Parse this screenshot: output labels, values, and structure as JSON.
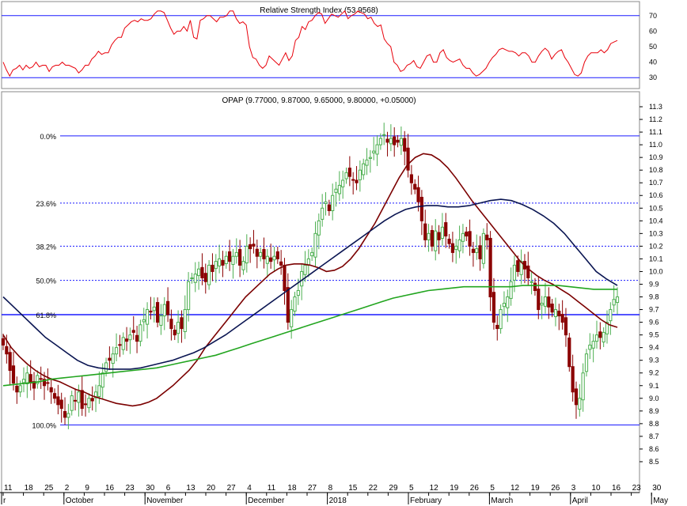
{
  "chart_data": [
    {
      "type": "line",
      "title": "Relative Strength Index (53.9568)",
      "ylim": [
        25,
        75
      ],
      "yticks": [
        30,
        40,
        50,
        60,
        70
      ],
      "reference_lines": [
        70,
        30
      ],
      "series": [
        {
          "name": "",
          "color": "#e8000a",
          "values": [
            40,
            35,
            31,
            35,
            36,
            38,
            35,
            38,
            36,
            37,
            40,
            37,
            38,
            38,
            34,
            37,
            38,
            38,
            40,
            38,
            38,
            37,
            36,
            33,
            35,
            38,
            38,
            42,
            44,
            47,
            45,
            46,
            46,
            51,
            54,
            56,
            56,
            62,
            64,
            66,
            67,
            66,
            68,
            67,
            67,
            68,
            71,
            73,
            73,
            72,
            67,
            62,
            58,
            60,
            60,
            63,
            60,
            67,
            56,
            55,
            67,
            68,
            70,
            70,
            68,
            66,
            69,
            69,
            70,
            73,
            73,
            68,
            65,
            66,
            64,
            50,
            43,
            42,
            38,
            36,
            38,
            44,
            42,
            40,
            38,
            42,
            46,
            41,
            44,
            54,
            56,
            63,
            61,
            66,
            67,
            70,
            72,
            71,
            65,
            68,
            71,
            70,
            69,
            71,
            73,
            68,
            70,
            71,
            73,
            72,
            71,
            68,
            69,
            65,
            63,
            64,
            55,
            52,
            50,
            40,
            38,
            34,
            35,
            38,
            39,
            41,
            37,
            36,
            40,
            44,
            45,
            40,
            40,
            46,
            48,
            43,
            41,
            40,
            41,
            42,
            38,
            36,
            36,
            33,
            31,
            32,
            34,
            36,
            40,
            43,
            45,
            48,
            49,
            48,
            47,
            47,
            46,
            44,
            46,
            46,
            44,
            40,
            40,
            44,
            47,
            49,
            47,
            42,
            45,
            47,
            48,
            43,
            40,
            36,
            32,
            31,
            33,
            40,
            44,
            46,
            46,
            46,
            48,
            46,
            48,
            52,
            53,
            54
          ]
        }
      ]
    },
    {
      "type": "candlestick",
      "title": "OPAP (9.77000, 9.87000, 9.65000, 9.80000, +0.05000)",
      "ylim": [
        8.4,
        11.3
      ],
      "yticks": [
        8.5,
        8.6,
        8.7,
        8.8,
        8.9,
        9.0,
        9.1,
        9.2,
        9.3,
        9.4,
        9.5,
        9.6,
        9.7,
        9.8,
        9.9,
        10.0,
        10.1,
        10.2,
        10.3,
        10.4,
        10.5,
        10.6,
        10.7,
        10.8,
        10.9,
        11.0,
        11.1,
        11.2,
        11.3
      ],
      "x_tick_labels": [
        "11",
        "18",
        "25",
        "2",
        "9",
        "16",
        "23",
        "30",
        "6",
        "13",
        "20",
        "27",
        "4",
        "11",
        "18",
        "27",
        "8",
        "15",
        "22",
        "29",
        "5",
        "12",
        "19",
        "26",
        "5",
        "12",
        "19",
        "26",
        "3",
        "10",
        "16",
        "23",
        "30"
      ],
      "month_labels": [
        "r",
        "October",
        "November",
        "December",
        "2018",
        "February",
        "March",
        "April",
        "May"
      ],
      "fibonacci": [
        {
          "label": "0.0%",
          "value": 11.07
        },
        {
          "label": "23.6%",
          "value": 10.54
        },
        {
          "label": "38.2%",
          "value": 10.2
        },
        {
          "label": "50.0%",
          "value": 9.93
        },
        {
          "label": "61.8%",
          "value": 9.66
        },
        {
          "label": "100.0%",
          "value": 8.79
        }
      ],
      "candles_up_color": "#4caf50",
      "candles_down_color": "#8b0000",
      "close": [
        9.42,
        9.35,
        9.22,
        9.12,
        9.05,
        9.1,
        9.15,
        9.2,
        9.12,
        9.08,
        9.18,
        9.15,
        9.1,
        9.12,
        9.05,
        9.0,
        8.95,
        8.92,
        8.85,
        8.88,
        9.02,
        8.98,
        9.05,
        8.92,
        8.95,
        9.0,
        8.98,
        9.05,
        9.1,
        9.2,
        9.28,
        9.3,
        9.35,
        9.4,
        9.42,
        9.48,
        9.45,
        9.5,
        9.52,
        9.45,
        9.58,
        9.62,
        9.7,
        9.68,
        9.72,
        9.6,
        9.65,
        9.74,
        9.66,
        9.55,
        9.5,
        9.6,
        9.55,
        9.7,
        9.92,
        9.95,
        9.98,
        10.02,
        9.95,
        9.92,
        10.05,
        10.0,
        10.08,
        10.1,
        10.05,
        10.12,
        10.08,
        10.12,
        10.15,
        10.05,
        10.08,
        10.2,
        10.18,
        10.2,
        10.12,
        10.15,
        10.1,
        10.12,
        10.08,
        10.12,
        10.1,
        10.05,
        9.85,
        9.6,
        9.7,
        9.8,
        9.85,
        10.0,
        10.05,
        10.1,
        10.15,
        10.3,
        10.4,
        10.5,
        10.55,
        10.48,
        10.6,
        10.65,
        10.68,
        10.72,
        10.78,
        10.75,
        10.72,
        10.7,
        10.8,
        10.85,
        10.88,
        10.9,
        10.95,
        11.0,
        11.05,
        11.08,
        11.02,
        11.05,
        11.0,
        11.02,
        11.05,
        10.95,
        10.8,
        10.7,
        10.65,
        10.55,
        10.4,
        10.25,
        10.3,
        10.2,
        10.32,
        10.25,
        10.35,
        10.28,
        10.22,
        10.15,
        10.2,
        10.25,
        10.3,
        10.28,
        10.2,
        10.15,
        10.18,
        10.1,
        10.3,
        10.25,
        9.8,
        9.6,
        9.55,
        9.7,
        9.75,
        9.8,
        9.92,
        10.05,
        10.0,
        10.08,
        10.02,
        9.95,
        9.92,
        9.85,
        9.7,
        9.75,
        9.8,
        9.72,
        9.68,
        9.7,
        9.65,
        9.6,
        9.5,
        9.25,
        9.05,
        8.95,
        9.0,
        9.2,
        9.35,
        9.42,
        9.45,
        9.5,
        9.48,
        9.52,
        9.6,
        9.7,
        9.78,
        9.8
      ],
      "series": [
        {
          "name": "",
          "color": "#7b0000",
          "values": [
            9.5,
            9.4,
            9.33,
            9.27,
            9.22,
            9.18,
            9.15,
            9.13,
            9.1,
            9.07,
            9.05,
            9.02,
            9.0,
            8.98,
            8.96,
            8.95,
            8.94,
            8.95,
            8.97,
            9.0,
            9.05,
            9.1,
            9.16,
            9.22,
            9.3,
            9.4,
            9.48,
            9.56,
            9.64,
            9.72,
            9.8,
            9.86,
            9.92,
            9.98,
            10.02,
            10.05,
            10.06,
            10.06,
            10.05,
            10.03,
            10.0,
            10.01,
            10.04,
            10.1,
            10.18,
            10.28,
            10.38,
            10.5,
            10.62,
            10.74,
            10.84,
            10.9,
            10.93,
            10.92,
            10.88,
            10.82,
            10.74,
            10.65,
            10.56,
            10.48,
            10.4,
            10.32,
            10.24,
            10.16,
            10.08,
            10.02,
            9.97,
            9.93,
            9.9,
            9.86,
            9.82,
            9.77,
            9.72,
            9.67,
            9.62,
            9.58,
            9.56
          ]
        },
        {
          "name": "",
          "color": "#0a1552",
          "values": [
            9.8,
            9.72,
            9.64,
            9.56,
            9.48,
            9.42,
            9.36,
            9.3,
            9.26,
            9.24,
            9.23,
            9.23,
            9.23,
            9.24,
            9.26,
            9.28,
            9.3,
            9.33,
            9.36,
            9.4,
            9.45,
            9.5,
            9.56,
            9.62,
            9.68,
            9.74,
            9.8,
            9.86,
            9.92,
            9.98,
            10.04,
            10.1,
            10.16,
            10.22,
            10.28,
            10.34,
            10.4,
            10.45,
            10.49,
            10.51,
            10.52,
            10.52,
            10.51,
            10.51,
            10.52,
            10.54,
            10.56,
            10.57,
            10.56,
            10.53,
            10.49,
            10.44,
            10.38,
            10.3,
            10.2,
            10.1,
            10.0,
            9.94,
            9.89
          ]
        },
        {
          "name": "",
          "color": "#22a51f",
          "values": [
            9.1,
            9.11,
            9.12,
            9.13,
            9.15,
            9.16,
            9.17,
            9.18,
            9.19,
            9.2,
            9.21,
            9.22,
            9.23,
            9.24,
            9.26,
            9.28,
            9.3,
            9.32,
            9.34,
            9.37,
            9.4,
            9.43,
            9.46,
            9.49,
            9.52,
            9.55,
            9.58,
            9.61,
            9.64,
            9.67,
            9.7,
            9.73,
            9.76,
            9.79,
            9.81,
            9.83,
            9.85,
            9.86,
            9.87,
            9.88,
            9.88,
            9.88,
            9.88,
            9.88,
            9.89,
            9.89,
            9.89,
            9.89,
            9.88,
            9.87,
            9.86,
            9.86,
            9.86
          ]
        }
      ]
    }
  ]
}
